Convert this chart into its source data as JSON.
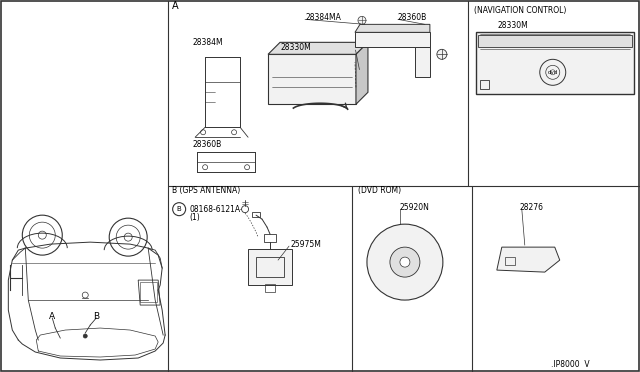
{
  "background_color": "#ffffff",
  "border_color": "#000000",
  "text_color": "#000000",
  "diagram_id": ".IP8000  V",
  "labels": {
    "section_A": "A",
    "nav_control": "(NAVIGATION CONTROL)",
    "part_28384MA": "28384MA",
    "part_28360B_top": "28360B",
    "part_28384M": "28384M",
    "part_28330M_main": "28330M",
    "part_28330M_nav": "28330M",
    "part_28360B_bot": "28360B",
    "section_B_gps": "B (GPS ANTENNA)",
    "dvd_rom": "(DVD ROM)",
    "part_08168": "B 08168-6121A",
    "part_08168_sub": "(1)",
    "part_25975M": "25975M",
    "part_25920N": "25920N",
    "part_28276": "28276",
    "car_A": "A",
    "car_B": "B"
  },
  "colors": {
    "line": "#333333",
    "fill_light": "#f2f2f2",
    "fill_mid": "#e0e0e0",
    "fill_dark": "#c8c8c8",
    "white": "#ffffff"
  }
}
